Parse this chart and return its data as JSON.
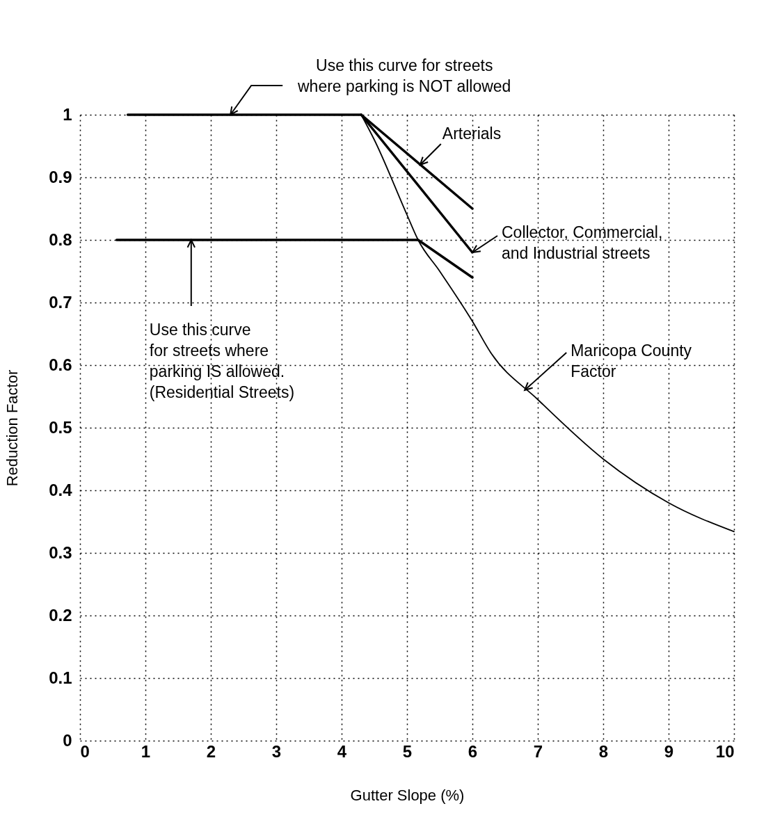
{
  "chart_data": {
    "type": "line",
    "xlabel": "Gutter Slope (%)",
    "ylabel": "Reduction Factor",
    "xlim": [
      0,
      10
    ],
    "xticks": [
      0,
      1,
      2,
      3,
      4,
      5,
      6,
      7,
      8,
      9,
      10
    ],
    "ylim": [
      0,
      1
    ],
    "yticks": [
      0,
      0.1,
      0.2,
      0.3,
      0.4,
      0.5,
      0.6,
      0.7,
      0.8,
      0.9,
      1
    ],
    "grid": true,
    "series": [
      {
        "color": "#000000",
        "x": [
          0.73,
          4.3
        ],
        "values": [
          1,
          1
        ]
      },
      {
        "color": "#000000",
        "x": [
          4.3,
          6
        ],
        "values": [
          1,
          0.85
        ]
      },
      {
        "color": "#000000",
        "x": [
          4.3,
          6
        ],
        "values": [
          1,
          0.78
        ]
      },
      {
        "color": "#000000",
        "x": [
          0.56,
          5.17,
          6
        ],
        "values": [
          0.8,
          0.8,
          0.74
        ]
      },
      {
        "color": "#000000",
        "x": [
          4.3,
          4.5,
          5,
          5.17,
          5.5,
          6,
          6.28,
          7,
          8,
          9,
          10
        ],
        "values": [
          1,
          0.96,
          0.84,
          0.8,
          0.75,
          0.67,
          0.62,
          0.545,
          0.45,
          0.38,
          0.334
        ]
      }
    ],
    "annotations": [
      {
        "text": "Use this curve for streets\nwhere parking is NOT allowed",
        "x": 2.3,
        "y": 1
      },
      {
        "text": "Arterials",
        "x": 5.2,
        "y": 0.92
      },
      {
        "text": "Collector, Commercial,\nand Industrial streets",
        "x": 6,
        "y": 0.78
      },
      {
        "text": "Use this curve\nfor streets where\nparking IS allowed.\n(Residential Streets)",
        "x": 1.7,
        "y": 0.8
      },
      {
        "text": "Maricopa County\nFactor",
        "x": 6.8,
        "y": 0.56
      }
    ]
  }
}
